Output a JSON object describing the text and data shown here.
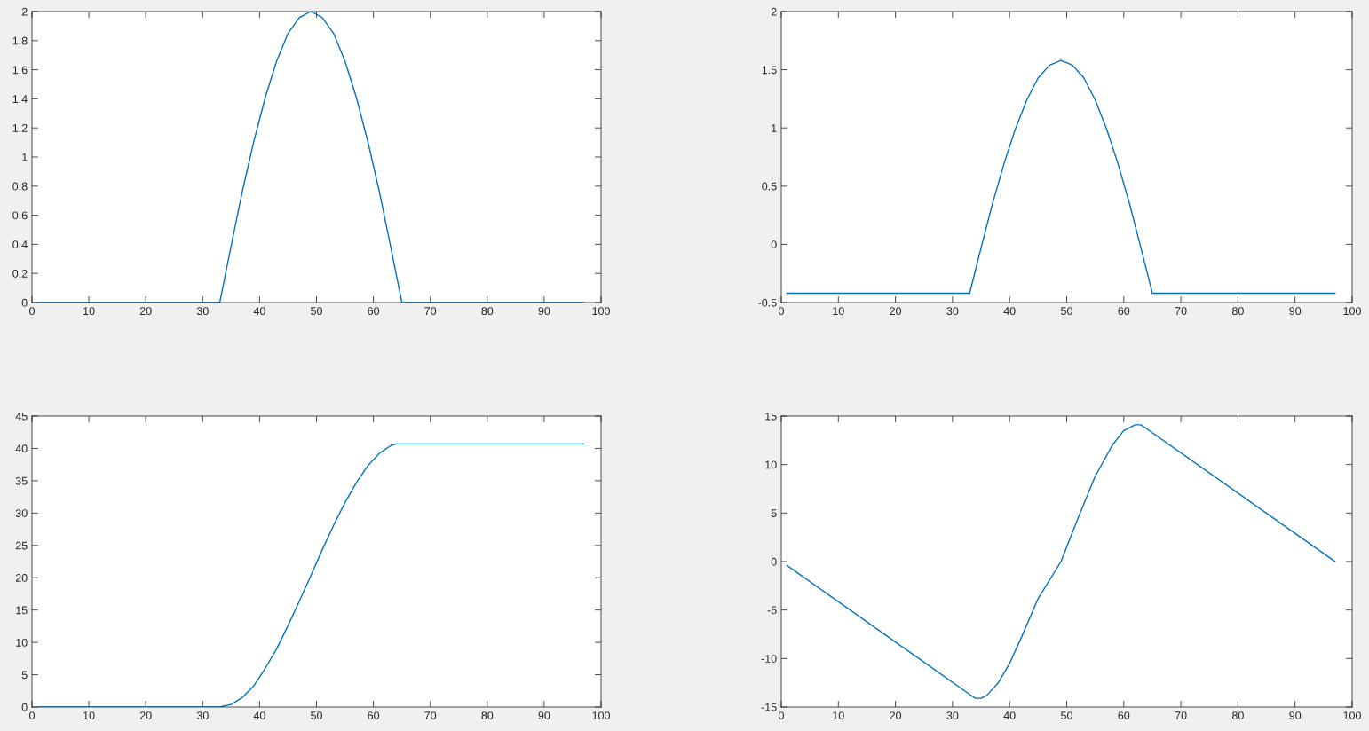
{
  "chart_data": [
    {
      "type": "line",
      "xlim": [
        0,
        100
      ],
      "xticks": [
        0,
        10,
        20,
        30,
        40,
        50,
        60,
        70,
        80,
        90,
        100
      ],
      "ylim": [
        0,
        2
      ],
      "yticks": [
        0,
        0.2,
        0.4,
        0.6,
        0.8,
        1,
        1.2,
        1.4,
        1.6,
        1.8,
        2
      ],
      "series": [
        {
          "color": "#0072bd",
          "x": [
            1,
            33,
            35,
            37,
            39,
            41,
            43,
            45,
            47,
            49,
            51,
            53,
            55,
            57,
            59,
            61,
            63,
            65,
            97
          ],
          "values": [
            0,
            0,
            0.39,
            0.77,
            1.11,
            1.41,
            1.66,
            1.85,
            1.96,
            2.0,
            1.96,
            1.85,
            1.66,
            1.41,
            1.11,
            0.77,
            0.39,
            0,
            0
          ]
        }
      ]
    },
    {
      "type": "line",
      "xlim": [
        0,
        100
      ],
      "xticks": [
        0,
        10,
        20,
        30,
        40,
        50,
        60,
        70,
        80,
        90,
        100
      ],
      "ylim": [
        -0.5,
        2
      ],
      "yticks": [
        -0.5,
        0,
        0.5,
        1,
        1.5,
        2
      ],
      "series": [
        {
          "color": "#0072bd",
          "x": [
            1,
            33,
            35,
            37,
            39,
            41,
            43,
            45,
            47,
            49,
            51,
            53,
            55,
            57,
            59,
            61,
            63,
            65,
            97
          ],
          "values": [
            -0.42,
            -0.42,
            -0.03,
            0.35,
            0.69,
            0.99,
            1.24,
            1.43,
            1.54,
            1.58,
            1.54,
            1.43,
            1.24,
            0.99,
            0.69,
            0.35,
            -0.03,
            -0.42,
            -0.42
          ]
        }
      ]
    },
    {
      "type": "line",
      "xlim": [
        0,
        100
      ],
      "xticks": [
        0,
        10,
        20,
        30,
        40,
        50,
        60,
        70,
        80,
        90,
        100
      ],
      "ylim": [
        0,
        45
      ],
      "yticks": [
        0,
        5,
        10,
        15,
        20,
        25,
        30,
        35,
        40,
        45
      ],
      "series": [
        {
          "color": "#0072bd",
          "x": [
            1,
            33,
            35,
            37,
            39,
            41,
            43,
            45,
            47,
            49,
            51,
            53,
            55,
            57,
            59,
            61,
            63,
            64,
            97
          ],
          "values": [
            0,
            0,
            0.4,
            1.5,
            3.3,
            6.0,
            9.0,
            12.6,
            16.4,
            20.3,
            24.3,
            28.1,
            31.6,
            34.7,
            37.3,
            39.2,
            40.4,
            40.7,
            40.7
          ]
        }
      ]
    },
    {
      "type": "line",
      "xlim": [
        0,
        100
      ],
      "xticks": [
        0,
        10,
        20,
        30,
        40,
        50,
        60,
        70,
        80,
        90,
        100
      ],
      "ylim": [
        -15,
        15
      ],
      "yticks": [
        -15,
        -10,
        -5,
        0,
        5,
        10,
        15
      ],
      "series": [
        {
          "color": "#0072bd",
          "x": [
            1,
            33,
            34,
            35,
            36,
            38,
            40,
            42,
            45,
            49,
            52,
            55,
            58,
            60,
            62,
            63,
            64,
            97
          ],
          "values": [
            -0.4,
            -13.7,
            -14.1,
            -14.1,
            -13.8,
            -12.5,
            -10.5,
            -7.9,
            -3.8,
            0,
            4.5,
            8.8,
            12.0,
            13.5,
            14.1,
            14.1,
            13.7,
            0
          ]
        }
      ]
    }
  ]
}
